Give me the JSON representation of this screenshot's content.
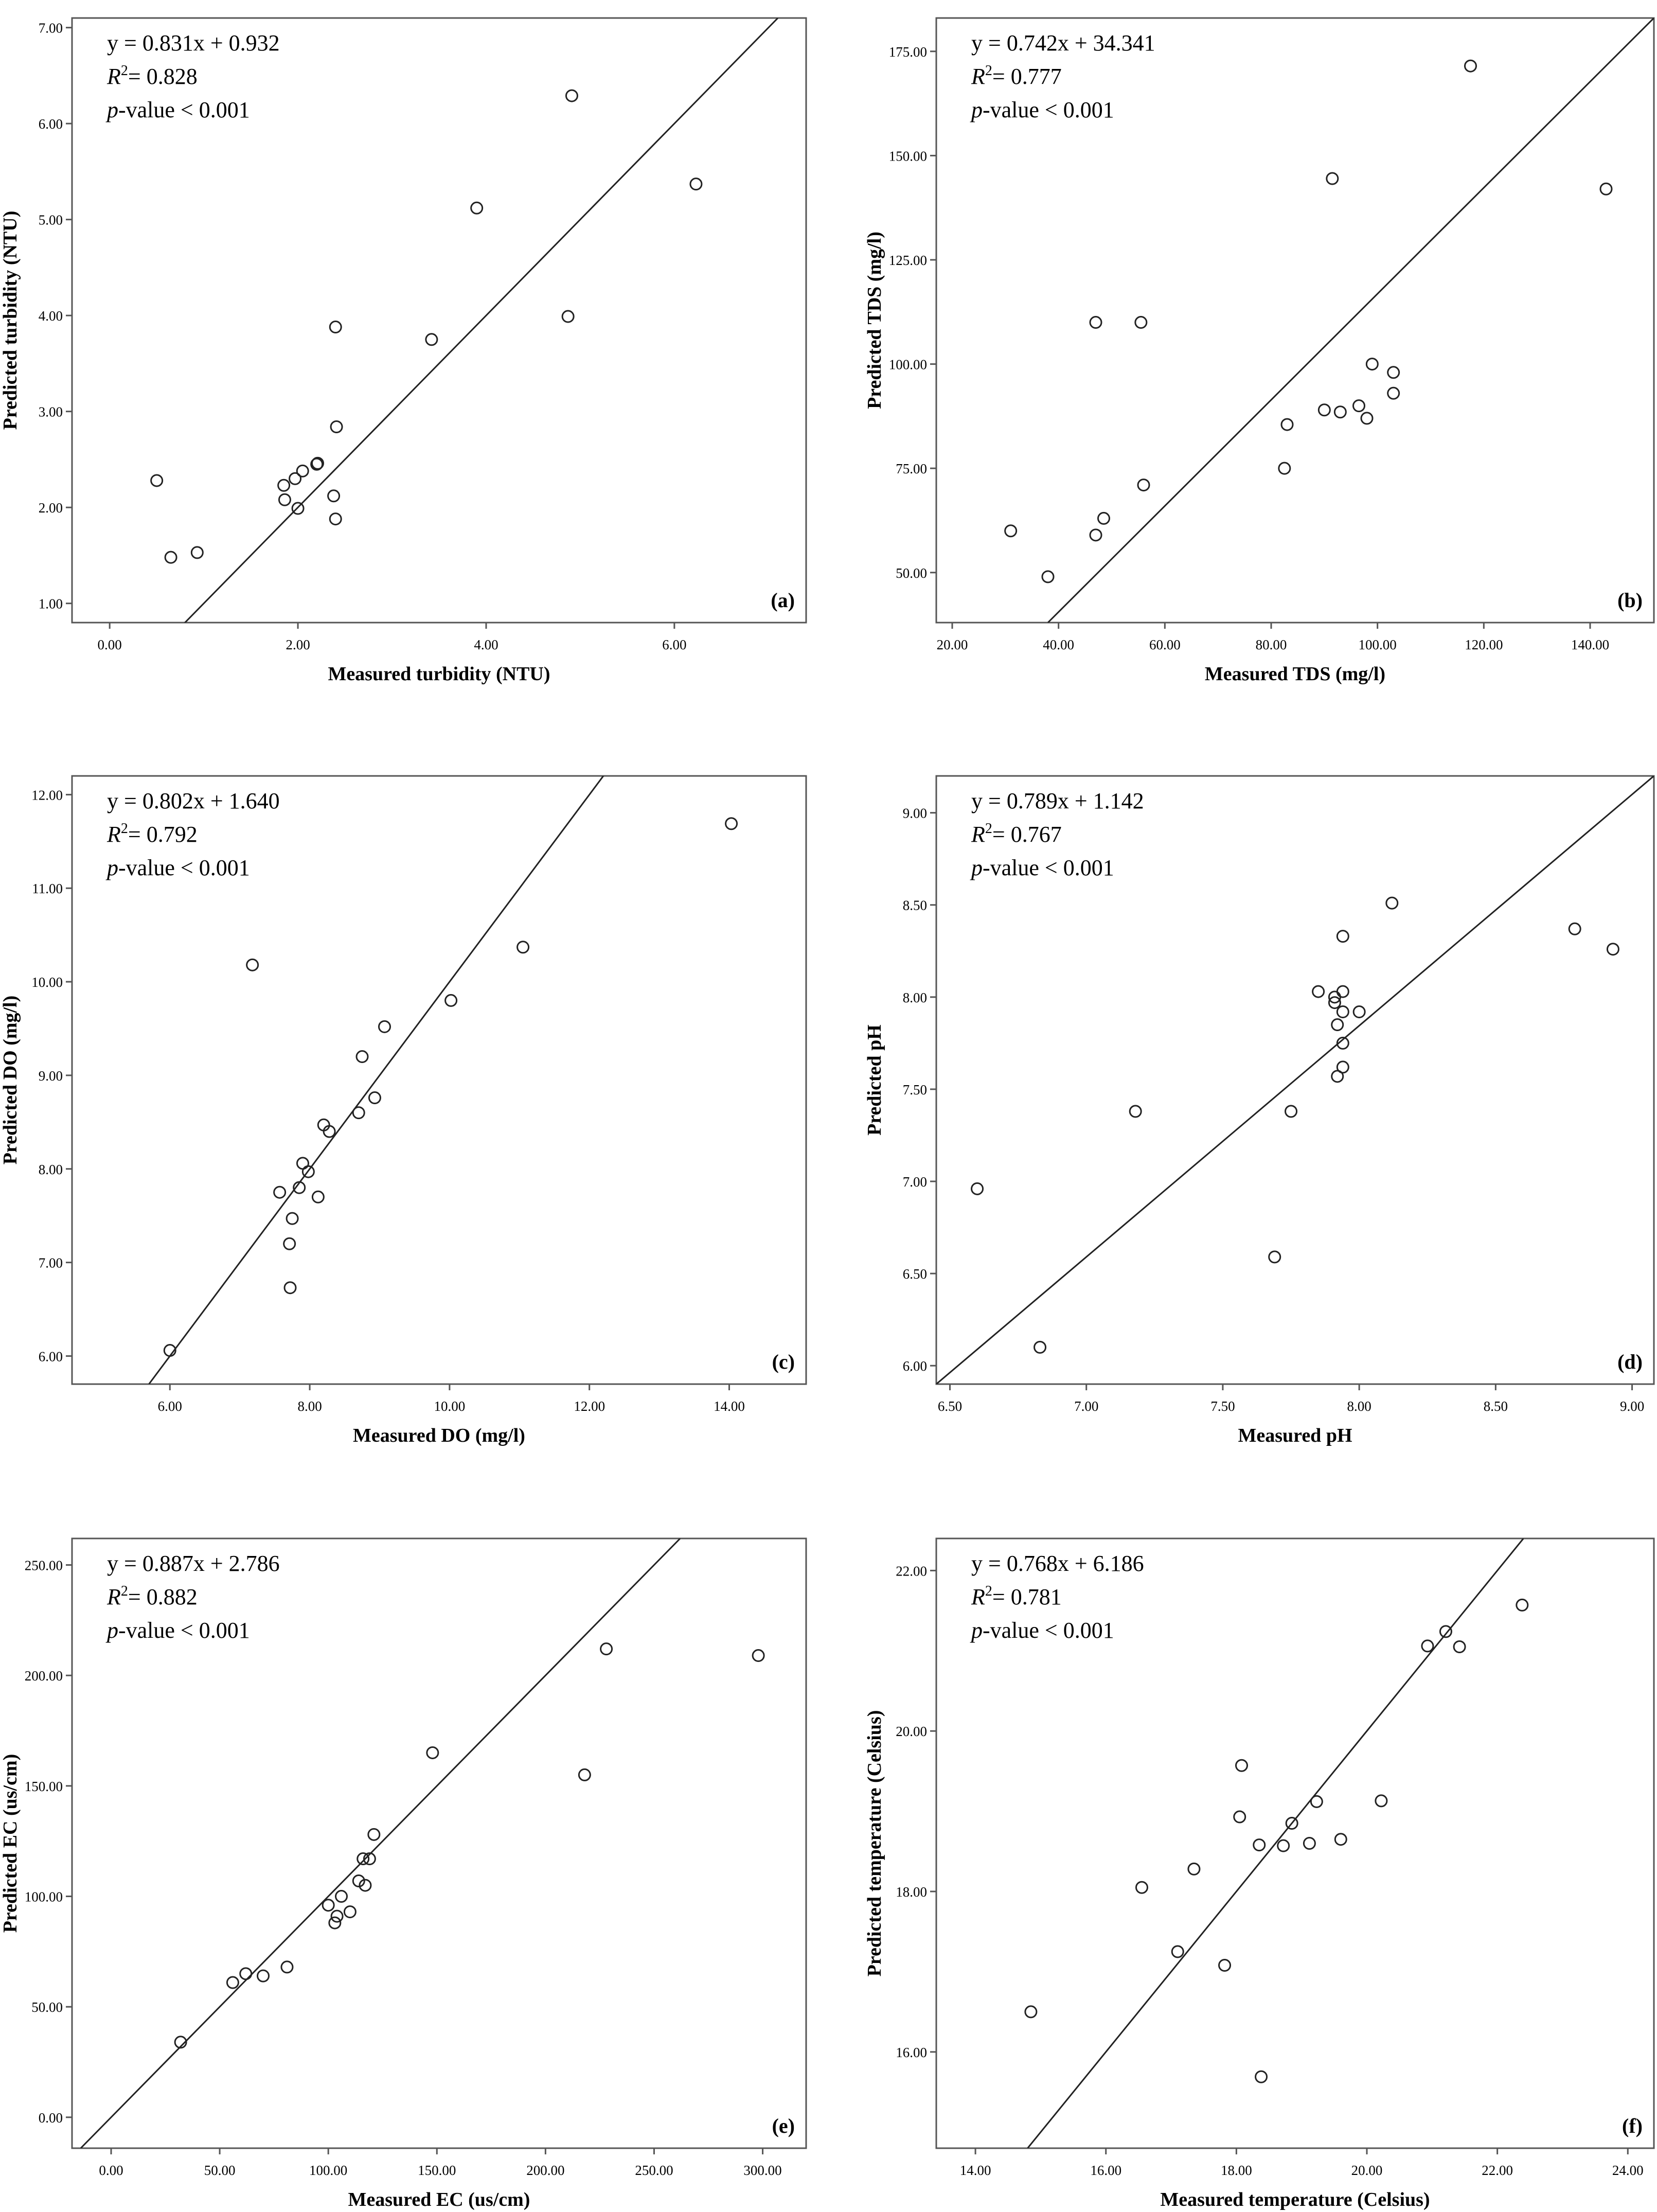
{
  "chart_data": [
    {
      "type": "scatter",
      "panel_label": "(a)",
      "xlabel": "Measured turbidity (NTU)",
      "ylabel": "Predicted turbidity (NTU)",
      "equation": "y = 0.831x + 0.932",
      "r2_prefix": "R",
      "r2_suffix": "= 0.828",
      "p_prefix": "p",
      "p_suffix": "-value < 0.001",
      "xlim": [
        -0.4,
        7.4
      ],
      "ylim": [
        0.8,
        7.1
      ],
      "xticks": [
        0,
        2,
        4,
        6
      ],
      "xtick_labels": [
        "0.00",
        "2.00",
        "4.00",
        "6.00"
      ],
      "yticks": [
        1,
        2,
        3,
        4,
        5,
        6,
        7
      ],
      "ytick_labels": [
        "1.00",
        "2.00",
        "3.00",
        "4.00",
        "5.00",
        "6.00",
        "7.00"
      ],
      "line": [
        [
          -0.4,
          -0.4
        ],
        [
          7.1,
          7.1
        ]
      ],
      "points": [
        [
          0.5,
          2.28
        ],
        [
          0.65,
          1.48
        ],
        [
          0.93,
          1.53
        ],
        [
          1.85,
          2.23
        ],
        [
          1.86,
          2.08
        ],
        [
          1.97,
          2.3
        ],
        [
          2.0,
          1.99
        ],
        [
          2.05,
          2.38
        ],
        [
          2.2,
          2.45
        ],
        [
          2.21,
          2.46
        ],
        [
          2.38,
          2.12
        ],
        [
          2.4,
          1.88
        ],
        [
          2.41,
          2.84
        ],
        [
          2.4,
          3.88
        ],
        [
          3.42,
          3.75
        ],
        [
          3.9,
          5.12
        ],
        [
          4.87,
          3.99
        ],
        [
          4.91,
          6.29
        ],
        [
          6.23,
          5.37
        ]
      ]
    },
    {
      "type": "scatter",
      "panel_label": "(b)",
      "xlabel": "Measured TDS (mg/l)",
      "ylabel": "Predicted TDS (mg/l)",
      "equation": "y = 0.742x + 34.341",
      "r2_prefix": "R",
      "r2_suffix": "= 0.777",
      "p_prefix": "p",
      "p_suffix": "-value < 0.001",
      "xlim": [
        17,
        152
      ],
      "ylim": [
        38,
        183
      ],
      "xticks": [
        20,
        40,
        60,
        80,
        100,
        120,
        140
      ],
      "xtick_labels": [
        "20.00",
        "40.00",
        "60.00",
        "80.00",
        "100.00",
        "120.00",
        "140.00"
      ],
      "yticks": [
        50,
        75,
        100,
        125,
        150,
        175
      ],
      "ytick_labels": [
        "50.00",
        "75.00",
        "100.00",
        "125.00",
        "150.00",
        "175.00"
      ],
      "line": [
        [
          38,
          38
        ],
        [
          152,
          183
        ]
      ],
      "points": [
        [
          31,
          60
        ],
        [
          38,
          49
        ],
        [
          47,
          59
        ],
        [
          47,
          110
        ],
        [
          48.5,
          63
        ],
        [
          55.5,
          110
        ],
        [
          56,
          71
        ],
        [
          82.5,
          75
        ],
        [
          83,
          85.5
        ],
        [
          90,
          89
        ],
        [
          91.5,
          144.5
        ],
        [
          93,
          88.5
        ],
        [
          96.5,
          90
        ],
        [
          98,
          87
        ],
        [
          99,
          100
        ],
        [
          103,
          98
        ],
        [
          103,
          93
        ],
        [
          117.5,
          171.5
        ],
        [
          143,
          142
        ]
      ]
    },
    {
      "type": "scatter",
      "panel_label": "(c)",
      "xlabel": "Measured DO (mg/l)",
      "ylabel": "Predicted DO (mg/l)",
      "equation": "y = 0.802x + 1.640",
      "r2_prefix": "R",
      "r2_suffix": "= 0.792",
      "p_prefix": "p",
      "p_suffix": "-value < 0.001",
      "xlim": [
        4.6,
        15.1
      ],
      "ylim": [
        5.7,
        12.2
      ],
      "xticks": [
        6,
        8,
        10,
        12,
        14
      ],
      "xtick_labels": [
        "6.00",
        "8.00",
        "10.00",
        "12.00",
        "14.00"
      ],
      "yticks": [
        6,
        7,
        8,
        9,
        10,
        11,
        12
      ],
      "ytick_labels": [
        "6.00",
        "7.00",
        "8.00",
        "9.00",
        "10.00",
        "11.00",
        "12.00"
      ],
      "line": [
        [
          5.7,
          5.7
        ],
        [
          15.1,
          15.1
        ]
      ],
      "points": [
        [
          6.0,
          6.06
        ],
        [
          7.18,
          10.18
        ],
        [
          7.57,
          7.75
        ],
        [
          7.71,
          7.2
        ],
        [
          7.72,
          6.73
        ],
        [
          7.75,
          7.47
        ],
        [
          7.85,
          7.8
        ],
        [
          7.9,
          8.06
        ],
        [
          7.98,
          7.97
        ],
        [
          8.12,
          7.7
        ],
        [
          8.2,
          8.47
        ],
        [
          8.28,
          8.4
        ],
        [
          8.7,
          8.6
        ],
        [
          8.75,
          9.2
        ],
        [
          8.93,
          8.76
        ],
        [
          9.07,
          9.52
        ],
        [
          10.02,
          9.8
        ],
        [
          11.05,
          10.37
        ],
        [
          14.03,
          11.69
        ]
      ]
    },
    {
      "type": "scatter",
      "panel_label": "(d)",
      "xlabel": "Measured pH",
      "ylabel": "Predicted pH",
      "equation": "y = 0.789x + 1.142",
      "r2_prefix": "R",
      "r2_suffix": "= 0.767",
      "p_prefix": "p",
      "p_suffix": "-value < 0.001",
      "xlim": [
        6.45,
        9.08
      ],
      "ylim": [
        5.9,
        9.2
      ],
      "xticks": [
        6.5,
        7.0,
        7.5,
        8.0,
        8.5,
        9.0
      ],
      "xtick_labels": [
        "6.50",
        "7.00",
        "7.50",
        "8.00",
        "8.50",
        "9.00"
      ],
      "yticks": [
        6.0,
        6.5,
        7.0,
        7.5,
        8.0,
        8.5,
        9.0
      ],
      "ytick_labels": [
        "6.00",
        "6.50",
        "7.00",
        "7.50",
        "8.00",
        "8.50",
        "9.00"
      ],
      "line": [
        [
          6.45,
          5.9
        ],
        [
          9.08,
          9.2
        ]
      ],
      "points": [
        [
          6.6,
          6.96
        ],
        [
          6.83,
          6.1
        ],
        [
          7.18,
          7.38
        ],
        [
          7.69,
          6.59
        ],
        [
          7.75,
          7.38
        ],
        [
          7.85,
          8.03
        ],
        [
          7.91,
          8.0
        ],
        [
          7.91,
          7.97
        ],
        [
          7.92,
          7.85
        ],
        [
          7.92,
          7.57
        ],
        [
          7.94,
          8.33
        ],
        [
          7.94,
          8.03
        ],
        [
          7.94,
          7.92
        ],
        [
          7.94,
          7.75
        ],
        [
          7.94,
          7.62
        ],
        [
          8.0,
          7.92
        ],
        [
          8.12,
          8.51
        ],
        [
          8.79,
          8.37
        ],
        [
          8.93,
          8.26
        ]
      ]
    },
    {
      "type": "scatter",
      "panel_label": "(e)",
      "xlabel": "Measured EC (us/cm)",
      "ylabel": "Predicted EC (us/cm)",
      "equation": "y = 0.887x + 2.786",
      "r2_prefix": "R",
      "r2_suffix": "= 0.882",
      "p_prefix": "p",
      "p_suffix": "-value < 0.001",
      "xlim": [
        -18,
        320
      ],
      "ylim": [
        -14,
        262
      ],
      "xticks": [
        0,
        50,
        100,
        150,
        200,
        250,
        300
      ],
      "xtick_labels": [
        "0.00",
        "50.00",
        "100.00",
        "150.00",
        "200.00",
        "250.00",
        "300.00"
      ],
      "yticks": [
        0,
        50,
        100,
        150,
        200,
        250
      ],
      "ytick_labels": [
        "0.00",
        "50.00",
        "100.00",
        "150.00",
        "200.00",
        "250.00"
      ],
      "line": [
        [
          -14,
          -14
        ],
        [
          262,
          262
        ]
      ],
      "points": [
        [
          32,
          34
        ],
        [
          56,
          61
        ],
        [
          62,
          65
        ],
        [
          70,
          64
        ],
        [
          81,
          68
        ],
        [
          100,
          96
        ],
        [
          103,
          88
        ],
        [
          104,
          91
        ],
        [
          106,
          100
        ],
        [
          110,
          93
        ],
        [
          114,
          107
        ],
        [
          116,
          117
        ],
        [
          117,
          105
        ],
        [
          119,
          117
        ],
        [
          121,
          128
        ],
        [
          148,
          165
        ],
        [
          218,
          155
        ],
        [
          228,
          212
        ],
        [
          298,
          209
        ]
      ]
    },
    {
      "type": "scatter",
      "panel_label": "(f)",
      "xlabel": "Measured temperature (Celsius)",
      "ylabel": "Predicted temperature (Celsius)",
      "equation": "y = 0.768x + 6.186",
      "r2_prefix": "R",
      "r2_suffix": "= 0.781",
      "p_prefix": "p",
      "p_suffix": "-value < 0.001",
      "xlim": [
        13.4,
        24.4
      ],
      "ylim": [
        14.8,
        22.4
      ],
      "xticks": [
        14,
        16,
        18,
        20,
        22,
        24
      ],
      "xtick_labels": [
        "14.00",
        "16.00",
        "18.00",
        "20.00",
        "22.00",
        "24.00"
      ],
      "yticks": [
        16,
        18,
        20,
        22
      ],
      "ytick_labels": [
        "16.00",
        "18.00",
        "20.00",
        "22.00"
      ],
      "line": [
        [
          14.8,
          14.8
        ],
        [
          22.4,
          22.4
        ]
      ],
      "points": [
        [
          14.85,
          16.5
        ],
        [
          16.55,
          18.05
        ],
        [
          17.1,
          17.25
        ],
        [
          17.35,
          18.28
        ],
        [
          17.82,
          17.08
        ],
        [
          18.05,
          18.93
        ],
        [
          18.08,
          19.57
        ],
        [
          18.35,
          18.58
        ],
        [
          18.38,
          15.69
        ],
        [
          18.72,
          18.57
        ],
        [
          18.85,
          18.85
        ],
        [
          19.12,
          18.6
        ],
        [
          19.23,
          19.12
        ],
        [
          19.6,
          18.65
        ],
        [
          20.22,
          19.13
        ],
        [
          20.93,
          21.06
        ],
        [
          21.21,
          21.24
        ],
        [
          21.42,
          21.05
        ],
        [
          22.38,
          21.57
        ]
      ]
    }
  ]
}
